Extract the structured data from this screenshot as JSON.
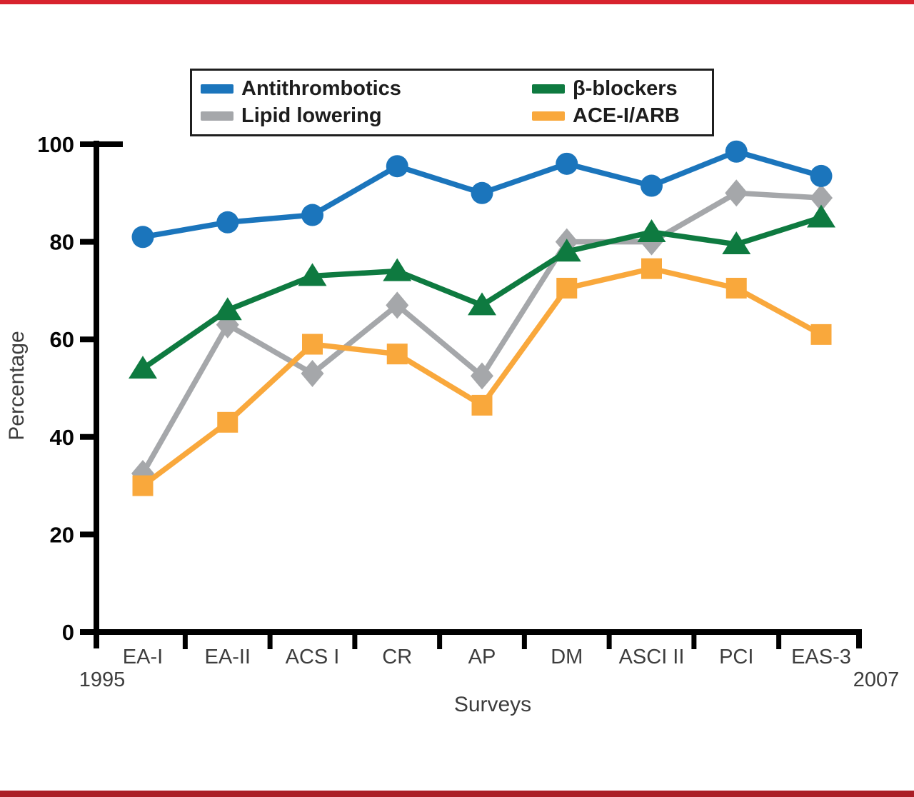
{
  "page": {
    "top_bar_color": "#d8232e",
    "bottom_bar_color": "#ab1f27",
    "background": "#ffffff"
  },
  "legend": {
    "items": [
      {
        "label": "Antithrombotics",
        "color": "#1b75bc",
        "marker": "circle"
      },
      {
        "label": "Lipid lowering",
        "color": "#a5a7aa",
        "marker": "diamond"
      },
      {
        "label": "β-blockers",
        "color": "#0e7a40",
        "marker": "triangle"
      },
      {
        "label": "ACE-I/ARB",
        "color": "#f9a83c",
        "marker": "square"
      }
    ]
  },
  "axes": {
    "y_label": "Percentage",
    "x_label": "Surveys",
    "left_year": "1995",
    "right_year": "2007",
    "y_ticks": [
      0,
      20,
      40,
      60,
      80,
      100
    ]
  },
  "chart_data": {
    "type": "line",
    "title": "",
    "xlabel": "Surveys",
    "ylabel": "Percentage",
    "ylim": [
      0,
      100
    ],
    "x_range_years": [
      "1995",
      "2007"
    ],
    "grid": false,
    "legend_position": "top",
    "categories": [
      "EA-I",
      "EA-II",
      "ACS I",
      "CR",
      "AP",
      "DM",
      "ASCI II",
      "PCI",
      "EAS-3"
    ],
    "series": [
      {
        "name": "Lipid lowering",
        "marker": "diamond",
        "color": "#a5a7aa",
        "values": [
          32.5,
          63,
          53,
          67,
          52.5,
          80,
          80,
          90,
          89
        ]
      },
      {
        "name": "ACE-I/ARB",
        "marker": "square",
        "color": "#f9a83c",
        "values": [
          30,
          43,
          59,
          57,
          46.5,
          70.5,
          74.5,
          70.5,
          61
        ]
      },
      {
        "name": "β-blockers",
        "marker": "triangle",
        "color": "#0e7a40",
        "values": [
          54,
          66,
          73,
          74,
          67,
          78,
          82,
          79.5,
          85
        ]
      },
      {
        "name": "Antithrombotics",
        "marker": "circle",
        "color": "#1b75bc",
        "values": [
          81,
          84,
          85.5,
          95.5,
          90,
          96,
          91.5,
          98.5,
          93.5
        ]
      }
    ]
  }
}
